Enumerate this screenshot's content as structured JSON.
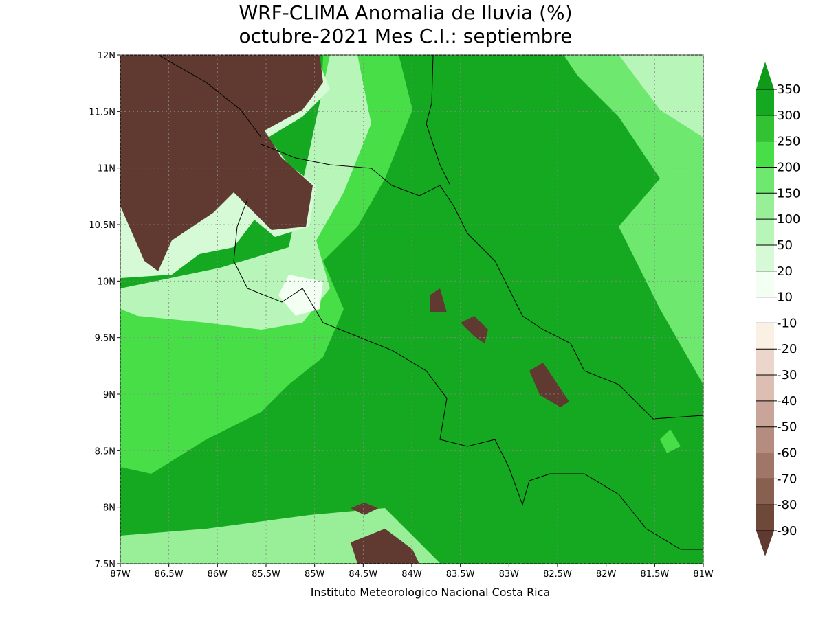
{
  "map": {
    "title": [
      "WRF-CLIMA Anomalia de lluvia (%)",
      "octubre-2021 Mes C.I.: septiembre"
    ],
    "lat_ticks": [
      {
        "value": 12,
        "label": "12N"
      },
      {
        "value": 11.5,
        "label": "11.5N"
      },
      {
        "value": 11,
        "label": "11N"
      },
      {
        "value": 10.5,
        "label": "10.5N"
      },
      {
        "value": 10,
        "label": "10N"
      },
      {
        "value": 9.5,
        "label": "9.5N"
      },
      {
        "value": 9,
        "label": "9N"
      },
      {
        "value": 8.5,
        "label": "8.5N"
      },
      {
        "value": 8,
        "label": "8N"
      },
      {
        "value": 7.5,
        "label": "7.5N"
      }
    ],
    "lon_ticks": [
      {
        "value": -87,
        "label": "87W"
      },
      {
        "value": -86.5,
        "label": "86.5W"
      },
      {
        "value": -86,
        "label": "86W"
      },
      {
        "value": -85.5,
        "label": "85.5W"
      },
      {
        "value": -85,
        "label": "85W"
      },
      {
        "value": -84.5,
        "label": "84.5W"
      },
      {
        "value": -84,
        "label": "84W"
      },
      {
        "value": -83.5,
        "label": "83.5W"
      },
      {
        "value": -83,
        "label": "83W"
      },
      {
        "value": -82.5,
        "label": "82.5W"
      },
      {
        "value": -82,
        "label": "82W"
      },
      {
        "value": -81.5,
        "label": "81.5W"
      },
      {
        "value": -81,
        "label": "81W"
      }
    ],
    "lonlim": [
      -87,
      -81
    ],
    "latlim": [
      7.5,
      12
    ],
    "colorbar": {
      "levels": [
        350,
        300,
        250,
        200,
        150,
        100,
        50,
        20,
        10,
        -10,
        -20,
        -30,
        -40,
        -50,
        -60,
        -70,
        -80,
        -90
      ],
      "colors": [
        "#0f9a1a",
        "#15a821",
        "#33c233",
        "#48de48",
        "#6ee86e",
        "#98ef98",
        "#b8f5b8",
        "#d6f9d6",
        "#f2fff2",
        "#ffffff",
        "#faf0e4",
        "#ecd6cc",
        "#dcbeb2",
        "#c9a498",
        "#b48c80",
        "#9f7668",
        "#876050",
        "#6e4838",
        "#603a30"
      ]
    },
    "credit": "Instituto Meteorologico Nacional Costa Rica"
  }
}
